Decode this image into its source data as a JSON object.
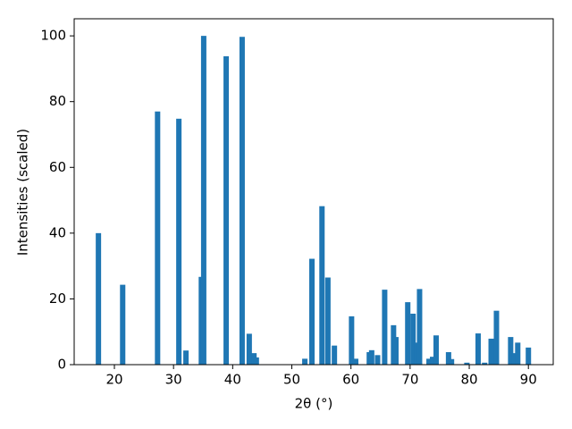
{
  "chart_data": {
    "type": "bar",
    "xlabel": "2θ (°)",
    "ylabel": "Intensities (scaled)",
    "color": "#1f77b4",
    "x": [
      17.3,
      21.4,
      27.3,
      30.9,
      32.1,
      34.7,
      35.1,
      38.9,
      41.6,
      42.8,
      43.6,
      44.0,
      52.2,
      53.4,
      55.1,
      56.1,
      57.2,
      60.1,
      60.8,
      63.1,
      63.5,
      64.5,
      65.7,
      67.2,
      67.6,
      69.6,
      70.5,
      71.1,
      71.6,
      73.2,
      73.8,
      74.4,
      76.5,
      77.0,
      79.6,
      81.5,
      82.6,
      83.7,
      84.6,
      87.0,
      87.6,
      88.2,
      90.0
    ],
    "values": [
      40,
      24.3,
      77,
      74.8,
      4.3,
      26.7,
      100,
      93.8,
      99.7,
      9.4,
      3.5,
      2.2,
      1.8,
      32.2,
      48.2,
      26.5,
      5.8,
      14.7,
      1.8,
      3.8,
      4.4,
      2.9,
      22.8,
      12,
      8.4,
      19,
      15.5,
      6.7,
      23,
      1.8,
      2.4,
      8.9,
      3.8,
      1.7,
      0.6,
      9.5,
      0.6,
      7.9,
      16.4,
      8.4,
      3.5,
      6.7,
      5.2
    ],
    "xlim": [
      13.2,
      94.2
    ],
    "ylim": [
      0,
      105.2
    ],
    "xticks": [
      20,
      30,
      40,
      50,
      60,
      70,
      80,
      90
    ],
    "yticks": [
      0,
      20,
      40,
      60,
      80,
      100
    ]
  }
}
